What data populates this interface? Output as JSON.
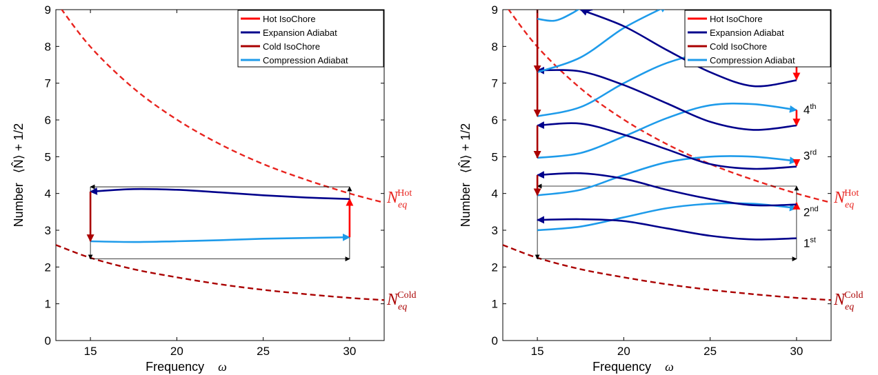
{
  "chart_data": [
    {
      "type": "line",
      "xlabel": "Frequency",
      "xlabel_symbol": "ω",
      "ylabel": "Number",
      "ylabel_symbol": "⟨N̂⟩ + 1/2",
      "xlim": [
        13,
        32
      ],
      "ylim": [
        0,
        9
      ],
      "xticks": [
        15,
        20,
        25,
        30
      ],
      "yticks": [
        0,
        1,
        2,
        3,
        4,
        5,
        6,
        7,
        8,
        9
      ],
      "legend": {
        "placement": "top-right",
        "entries": [
          {
            "label": "Hot IsoChore",
            "color": "#ff0000"
          },
          {
            "label": "Expansion Adiabat",
            "color": "#00008b"
          },
          {
            "label": "Cold IsoChore",
            "color": "#aa0000"
          },
          {
            "label": "Compression Adiabat",
            "color": "#1e9bea"
          }
        ]
      },
      "equilibrium_curves": [
        {
          "name": "Hot",
          "label_main": "N",
          "label_sub": "eq",
          "label_sup": "Hot",
          "color": "#e8231e",
          "x": [
            13,
            15,
            17.5,
            20,
            22.5,
            25,
            27.5,
            30,
            32
          ],
          "y": [
            9.22,
            7.99,
            6.86,
            6.01,
            5.34,
            4.8,
            4.37,
            4.0,
            3.75
          ]
        },
        {
          "name": "Cold",
          "label_main": "N",
          "label_sub": "eq",
          "label_sup": "Cold",
          "color": "#aa0000",
          "x": [
            13,
            15,
            17.5,
            20,
            22.5,
            25,
            27.5,
            30,
            32
          ],
          "y": [
            2.6,
            2.25,
            1.94,
            1.72,
            1.53,
            1.38,
            1.26,
            1.16,
            1.1
          ]
        }
      ],
      "rectangle": {
        "x": [
          15,
          30
        ],
        "y": [
          2.22,
          4.18
        ],
        "color": "#000000"
      },
      "series": [
        {
          "name": "Compression Adiabat",
          "color": "#1e9bea",
          "x": [
            15,
            17.5,
            20,
            22.5,
            25,
            27.5,
            30
          ],
          "y": [
            2.7,
            2.68,
            2.7,
            2.73,
            2.77,
            2.79,
            2.81
          ]
        },
        {
          "name": "Hot IsoChore",
          "color": "#ff0000",
          "x": [
            30,
            30
          ],
          "y": [
            2.81,
            3.85
          ]
        },
        {
          "name": "Expansion Adiabat",
          "color": "#00008b",
          "x": [
            30,
            27.5,
            25,
            22.5,
            20,
            17.5,
            15
          ],
          "y": [
            3.85,
            3.89,
            3.95,
            4.03,
            4.1,
            4.12,
            4.05
          ]
        },
        {
          "name": "Cold IsoChore",
          "color": "#aa0000",
          "x": [
            15,
            15
          ],
          "y": [
            4.05,
            2.7
          ]
        }
      ],
      "annotations": []
    },
    {
      "type": "line",
      "xlabel": "Frequency",
      "xlabel_symbol": "ω",
      "ylabel": "Number",
      "ylabel_symbol": "⟨N̂⟩ + 1/2",
      "xlim": [
        13,
        32
      ],
      "ylim": [
        0,
        9
      ],
      "xticks": [
        15,
        20,
        25,
        30
      ],
      "yticks": [
        0,
        1,
        2,
        3,
        4,
        5,
        6,
        7,
        8,
        9
      ],
      "legend": {
        "placement": "top-right",
        "entries": [
          {
            "label": "Hot IsoChore",
            "color": "#ff0000"
          },
          {
            "label": "Expansion Adiabat",
            "color": "#00008b"
          },
          {
            "label": "Cold IsoChore",
            "color": "#aa0000"
          },
          {
            "label": "Compression Adiabat",
            "color": "#1e9bea"
          }
        ]
      },
      "equilibrium_curves": [
        {
          "name": "Hot",
          "label_main": "N",
          "label_sub": "eq",
          "label_sup": "Hot",
          "color": "#e8231e",
          "x": [
            13,
            15,
            17.5,
            20,
            22.5,
            25,
            27.5,
            30,
            32
          ],
          "y": [
            9.22,
            7.99,
            6.86,
            6.01,
            5.34,
            4.8,
            4.37,
            4.0,
            3.75
          ]
        },
        {
          "name": "Cold",
          "label_main": "N",
          "label_sub": "eq",
          "label_sup": "Cold",
          "color": "#aa0000",
          "x": [
            13,
            15,
            17.5,
            20,
            22.5,
            25,
            27.5,
            30,
            32
          ],
          "y": [
            2.6,
            2.25,
            1.94,
            1.72,
            1.53,
            1.38,
            1.26,
            1.16,
            1.1
          ]
        }
      ],
      "rectangle": {
        "x": [
          15,
          30
        ],
        "y": [
          2.22,
          4.2
        ],
        "color": "#000000"
      },
      "series": [
        {
          "name": "Compression Adiabat",
          "color": "#1e9bea",
          "x": [
            15,
            17.5,
            20,
            22.5,
            25,
            27.5,
            30
          ],
          "y": [
            3.0,
            3.1,
            3.35,
            3.6,
            3.72,
            3.72,
            3.6
          ]
        },
        {
          "name": "Hot IsoChore",
          "color": "#ff0000",
          "x": [
            30,
            30
          ],
          "y": [
            3.6,
            3.75
          ]
        },
        {
          "name": "Expansion Adiabat",
          "color": "#00008b",
          "x": [
            30,
            27.5,
            25,
            22.5,
            20,
            17.5,
            15
          ],
          "y": [
            2.78,
            2.75,
            2.85,
            3.05,
            3.25,
            3.3,
            3.28
          ]
        },
        {
          "name": "Compression Adiabat",
          "color": "#1e9bea",
          "x": [
            15,
            17.5,
            20,
            22.5,
            25,
            27.5,
            30
          ],
          "y": [
            3.95,
            4.1,
            4.5,
            4.85,
            5.0,
            5.0,
            4.88
          ]
        },
        {
          "name": "Hot IsoChore",
          "color": "#ff0000",
          "x": [
            30,
            30
          ],
          "y": [
            4.88,
            4.75
          ]
        },
        {
          "name": "Expansion Adiabat",
          "color": "#00008b",
          "x": [
            30,
            27.5,
            25,
            22.5,
            20,
            17.5,
            15
          ],
          "y": [
            3.7,
            3.68,
            3.85,
            4.1,
            4.4,
            4.55,
            4.5
          ]
        },
        {
          "name": "Cold IsoChore",
          "color": "#aa0000",
          "x": [
            15,
            15
          ],
          "y": [
            4.5,
            3.95
          ]
        },
        {
          "name": "Compression Adiabat",
          "color": "#1e9bea",
          "x": [
            15,
            17.5,
            20,
            22.5,
            25,
            27.5,
            30
          ],
          "y": [
            4.97,
            5.1,
            5.55,
            6.05,
            6.4,
            6.43,
            6.27
          ]
        },
        {
          "name": "Hot IsoChore",
          "color": "#ff0000",
          "x": [
            30,
            30
          ],
          "y": [
            6.27,
            5.85
          ]
        },
        {
          "name": "Expansion Adiabat",
          "color": "#00008b",
          "x": [
            30,
            27.5,
            25,
            22.5,
            20,
            17.5,
            15
          ],
          "y": [
            4.73,
            4.67,
            4.8,
            5.2,
            5.6,
            5.9,
            5.85
          ]
        },
        {
          "name": "Cold IsoChore",
          "color": "#aa0000",
          "x": [
            15,
            15
          ],
          "y": [
            5.85,
            4.97
          ]
        },
        {
          "name": "Compression Adiabat",
          "color": "#1e9bea",
          "x": [
            15,
            17.5,
            20,
            22.5,
            25,
            27.5
          ],
          "y": [
            6.1,
            6.35,
            7.0,
            7.55,
            7.85,
            7.95
          ]
        },
        {
          "name": "Expansion Adiabat",
          "color": "#00008b",
          "x": [
            30,
            27.5,
            25,
            22.5,
            20,
            17.5,
            15
          ],
          "y": [
            5.85,
            5.73,
            5.95,
            6.45,
            6.95,
            7.32,
            7.35
          ]
        },
        {
          "name": "Cold IsoChore",
          "color": "#aa0000",
          "x": [
            15,
            15
          ],
          "y": [
            7.35,
            6.1
          ]
        },
        {
          "name": "Compression Adiabat",
          "color": "#1e9bea",
          "x": [
            15,
            17.5,
            20,
            22.5
          ],
          "y": [
            7.3,
            7.7,
            8.5,
            9.1
          ]
        },
        {
          "name": "Expansion Adiabat",
          "color": "#00008b",
          "x": [
            30,
            27.5,
            25,
            22.5,
            20,
            17.5
          ],
          "y": [
            7.08,
            6.92,
            7.3,
            7.9,
            8.55,
            9.0
          ]
        },
        {
          "name": "Hot IsoChore",
          "color": "#ff0000",
          "x": [
            30,
            30
          ],
          "y": [
            7.6,
            7.1
          ]
        },
        {
          "name": "Cold IsoChore",
          "color": "#aa0000",
          "x": [
            15,
            15
          ],
          "y": [
            9.0,
            7.3
          ]
        },
        {
          "name": "Compression Adiabat",
          "color": "#1e9bea",
          "x": [
            15,
            16,
            17,
            18
          ],
          "y": [
            8.75,
            8.7,
            8.9,
            9.2
          ]
        },
        {
          "name": "Expansion Adiabat",
          "color": "#00008b",
          "x": [
            16.5,
            17.2,
            18.2
          ],
          "y": [
            9.1,
            9.05,
            9.0
          ]
        }
      ],
      "annotations": [
        {
          "text": "1",
          "sup": "st",
          "x": 30.4,
          "y": 2.65
        },
        {
          "text": "2",
          "sup": "nd",
          "x": 30.4,
          "y": 3.5
        },
        {
          "text": "3",
          "sup": "rd",
          "x": 30.4,
          "y": 5.03
        },
        {
          "text": "4",
          "sup": "th",
          "x": 30.4,
          "y": 6.28
        }
      ]
    }
  ]
}
